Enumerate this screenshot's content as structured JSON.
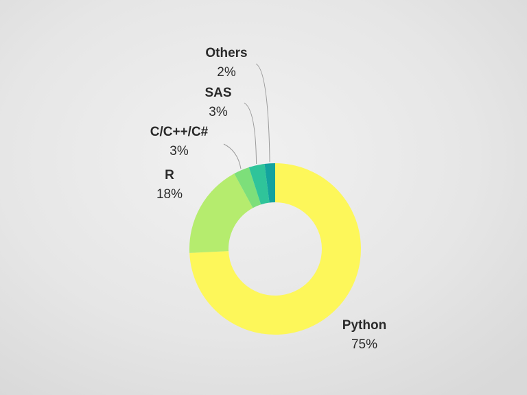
{
  "chart_data": {
    "type": "donut",
    "categories": [
      "Python",
      "R",
      "C/C++/C#",
      "SAS",
      "Others"
    ],
    "values": [
      75,
      18,
      3,
      3,
      2
    ],
    "value_labels": [
      "75%",
      "18%",
      "3%",
      "3%",
      "2%"
    ],
    "colors": [
      "#fdf75a",
      "#b5ec6e",
      "#7ddf7a",
      "#2fc49a",
      "#13a39e"
    ]
  }
}
